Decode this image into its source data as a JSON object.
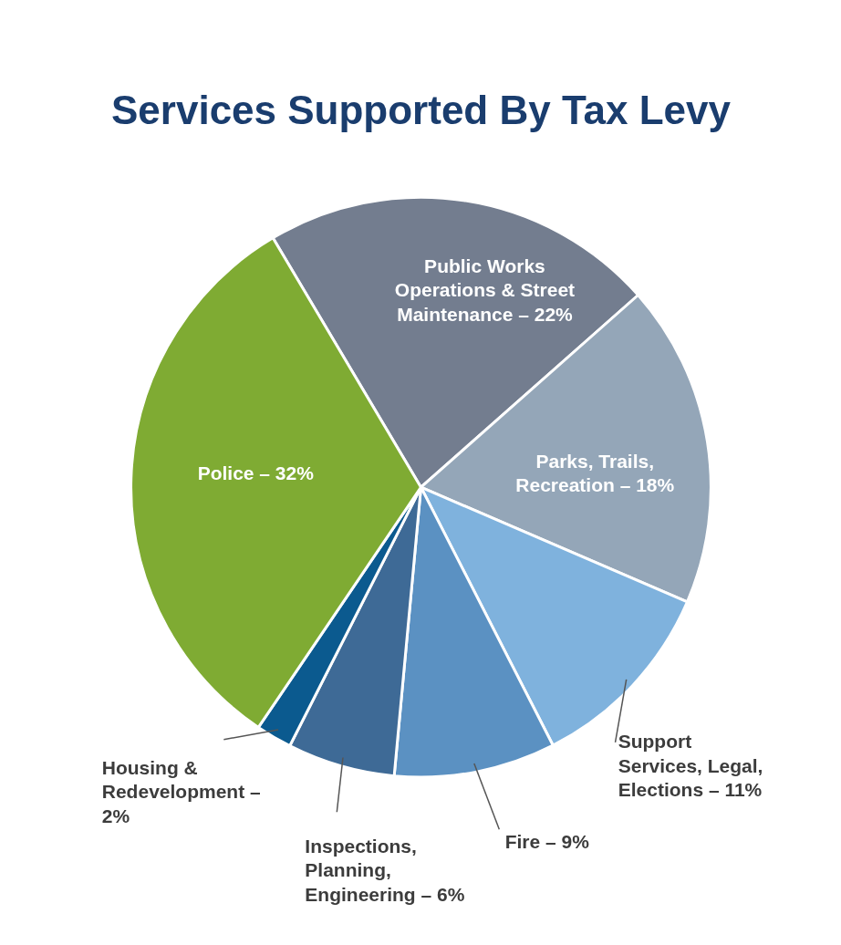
{
  "chart_data": {
    "type": "pie",
    "title": "Services Supported By Tax Levy",
    "categories": [
      "Public Works Operations & Street Maintenance – 22%",
      "Parks, Trails, Recreation – 18%",
      "Support Services, Legal, Elections – 11%",
      "Fire – 9%",
      "Inspections, Planning, Engineering – 6%",
      "Housing & Redevelopment – 2%",
      "Police – 32%"
    ],
    "values": [
      22,
      18,
      11,
      9,
      6,
      2,
      32
    ],
    "colors": [
      "#737d8f",
      "#94a6b8",
      "#7fb2dd",
      "#5b91c2",
      "#3e6a96",
      "#0b5a8f",
      "#7fab33"
    ]
  }
}
